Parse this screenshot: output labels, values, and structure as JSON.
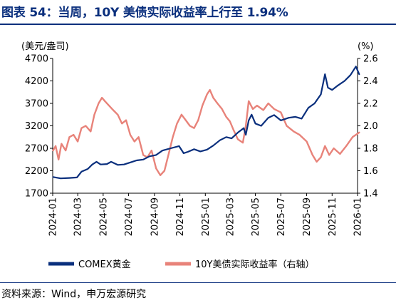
{
  "title": "图表 54：当周，10Y 美债实际收益率上行至 1.94%",
  "source": "资料来源：Wind，申万宏源研究",
  "colors": {
    "gold": "#0a2f7d",
    "yield": "#e8837a",
    "title": "#0a2f7d"
  },
  "chart_data": {
    "type": "line",
    "title": "",
    "y_left_unit": "(美元/盎司)",
    "y_right_unit": "(%)",
    "y_left_lim": [
      1700,
      4700
    ],
    "y_left_ticks": [
      "1700",
      "2200",
      "2700",
      "3200",
      "3700",
      "4200",
      "4700"
    ],
    "y_right_lim": [
      1.4,
      2.6
    ],
    "y_right_ticks": [
      "1.4",
      "1.6",
      "1.8",
      "2.0",
      "2.2",
      "2.4",
      "2.6"
    ],
    "x_ticks": [
      "2024-01",
      "2024-03",
      "2024-05",
      "2024-07",
      "2024-09",
      "2024-11",
      "2025-01",
      "2025-03",
      "2025-05",
      "2025-07",
      "2025-09",
      "2025-11",
      "2026-01"
    ],
    "grid": false,
    "legend_position": "bottom",
    "series": [
      {
        "name": "COMEX黄金",
        "axis": "left",
        "x": [
          "2024-01-02",
          "2024-01-20",
          "2024-02-10",
          "2024-02-28",
          "2024-03-10",
          "2024-03-25",
          "2024-04-05",
          "2024-04-15",
          "2024-04-25",
          "2024-05-10",
          "2024-05-20",
          "2024-06-05",
          "2024-06-20",
          "2024-07-10",
          "2024-07-20",
          "2024-08-05",
          "2024-08-20",
          "2024-09-05",
          "2024-09-20",
          "2024-10-10",
          "2024-10-30",
          "2024-11-10",
          "2024-11-20",
          "2024-12-05",
          "2024-12-20",
          "2025-01-05",
          "2025-01-20",
          "2025-02-05",
          "2025-02-20",
          "2025-03-05",
          "2025-03-20",
          "2025-04-03",
          "2025-04-08",
          "2025-04-15",
          "2025-04-22",
          "2025-05-01",
          "2025-05-15",
          "2025-06-01",
          "2025-06-15",
          "2025-07-01",
          "2025-07-20",
          "2025-08-05",
          "2025-08-20",
          "2025-09-05",
          "2025-09-20",
          "2025-10-05",
          "2025-10-15",
          "2025-10-22",
          "2025-11-01",
          "2025-11-15",
          "2025-12-01",
          "2025-12-15",
          "2025-12-28",
          "2026-01-05"
        ],
        "values": [
          2060,
          2030,
          2040,
          2050,
          2180,
          2240,
          2340,
          2400,
          2340,
          2350,
          2400,
          2330,
          2340,
          2400,
          2430,
          2450,
          2520,
          2550,
          2650,
          2700,
          2750,
          2590,
          2620,
          2680,
          2630,
          2670,
          2760,
          2880,
          2950,
          2920,
          3050,
          3150,
          3000,
          3320,
          3450,
          3250,
          3200,
          3380,
          3440,
          3320,
          3380,
          3400,
          3360,
          3600,
          3700,
          3900,
          4350,
          4050,
          4000,
          4100,
          4200,
          4330,
          4520,
          4350
        ]
      },
      {
        "name": "10Y美债实际收益率（右轴）",
        "axis": "right",
        "x": [
          "2024-01-02",
          "2024-01-08",
          "2024-01-15",
          "2024-01-22",
          "2024-02-01",
          "2024-02-10",
          "2024-02-20",
          "2024-03-01",
          "2024-03-10",
          "2024-03-20",
          "2024-04-01",
          "2024-04-10",
          "2024-04-20",
          "2024-04-28",
          "2024-05-05",
          "2024-05-15",
          "2024-05-25",
          "2024-06-05",
          "2024-06-15",
          "2024-06-25",
          "2024-07-05",
          "2024-07-15",
          "2024-07-25",
          "2024-08-05",
          "2024-08-15",
          "2024-08-25",
          "2024-09-05",
          "2024-09-15",
          "2024-09-25",
          "2024-10-05",
          "2024-10-15",
          "2024-10-25",
          "2024-11-05",
          "2024-11-15",
          "2024-11-25",
          "2024-12-05",
          "2024-12-15",
          "2024-12-25",
          "2025-01-05",
          "2025-01-12",
          "2025-01-20",
          "2025-01-30",
          "2025-02-10",
          "2025-02-20",
          "2025-03-01",
          "2025-03-10",
          "2025-03-20",
          "2025-04-01",
          "2025-04-08",
          "2025-04-15",
          "2025-04-25",
          "2025-05-05",
          "2025-05-20",
          "2025-06-01",
          "2025-06-15",
          "2025-07-01",
          "2025-07-15",
          "2025-08-01",
          "2025-08-15",
          "2025-09-01",
          "2025-09-15",
          "2025-09-25",
          "2025-10-05",
          "2025-10-15",
          "2025-10-25",
          "2025-11-05",
          "2025-11-20",
          "2025-12-05",
          "2025-12-20",
          "2026-01-05"
        ],
        "values": [
          1.78,
          1.82,
          1.7,
          1.84,
          1.78,
          1.9,
          1.92,
          1.86,
          1.98,
          2.0,
          1.95,
          2.1,
          2.2,
          2.25,
          2.22,
          2.18,
          2.14,
          2.1,
          2.02,
          2.05,
          1.92,
          1.86,
          1.9,
          1.74,
          1.72,
          1.78,
          1.62,
          1.56,
          1.6,
          1.75,
          1.9,
          2.02,
          2.1,
          2.05,
          2.0,
          1.98,
          2.05,
          2.18,
          2.28,
          2.32,
          2.25,
          2.2,
          2.15,
          2.08,
          2.04,
          1.96,
          1.88,
          1.85,
          2.0,
          2.22,
          2.15,
          2.18,
          2.14,
          2.2,
          2.15,
          2.12,
          2.0,
          1.95,
          1.92,
          1.86,
          1.74,
          1.68,
          1.72,
          1.82,
          1.74,
          1.8,
          1.75,
          1.82,
          1.9,
          1.94
        ]
      }
    ]
  }
}
